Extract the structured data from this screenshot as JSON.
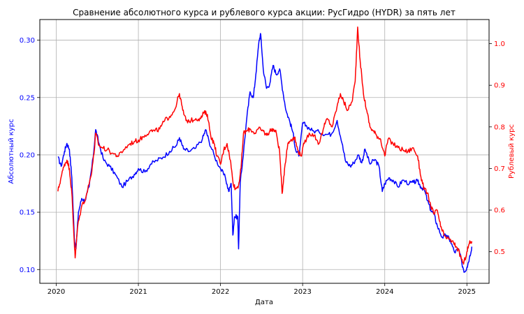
{
  "chart_data": {
    "type": "line",
    "title": "Сравнение абсолютного курса и рублевого курса акции: РусГидро (HYDR) за пять лет",
    "xlabel": "Дата",
    "ylabel_left": "Абсолютный курс",
    "ylabel_right": "Рублевый курс",
    "x_range": [
      2019.8,
      2025.27
    ],
    "x_ticks": [
      "2020",
      "2021",
      "2022",
      "2023",
      "2024",
      "2025"
    ],
    "y_left_range": [
      0.088,
      0.318
    ],
    "y_left_ticks": [
      "0.10",
      "0.15",
      "0.20",
      "0.25",
      "0.30"
    ],
    "y_right_range": [
      0.424,
      1.058
    ],
    "y_right_ticks": [
      "0.5",
      "0.6",
      "0.7",
      "0.8",
      "0.9",
      "1.0"
    ],
    "grid": true,
    "colors": {
      "left": "#0000ff",
      "right": "#ff0000"
    },
    "series": [
      {
        "axis": "left",
        "color": "#0000ff",
        "points": [
          [
            2020.02,
            0.198
          ],
          [
            2020.06,
            0.19
          ],
          [
            2020.1,
            0.203
          ],
          [
            2020.13,
            0.21
          ],
          [
            2020.16,
            0.205
          ],
          [
            2020.19,
            0.18
          ],
          [
            2020.22,
            0.128
          ],
          [
            2020.24,
            0.118
          ],
          [
            2020.27,
            0.15
          ],
          [
            2020.31,
            0.162
          ],
          [
            2020.35,
            0.16
          ],
          [
            2020.4,
            0.172
          ],
          [
            2020.45,
            0.198
          ],
          [
            2020.48,
            0.222
          ],
          [
            2020.52,
            0.21
          ],
          [
            2020.58,
            0.195
          ],
          [
            2020.65,
            0.19
          ],
          [
            2020.72,
            0.183
          ],
          [
            2020.8,
            0.172
          ],
          [
            2020.88,
            0.178
          ],
          [
            2020.95,
            0.183
          ],
          [
            2021.0,
            0.188
          ],
          [
            2021.08,
            0.185
          ],
          [
            2021.15,
            0.192
          ],
          [
            2021.22,
            0.195
          ],
          [
            2021.3,
            0.198
          ],
          [
            2021.38,
            0.203
          ],
          [
            2021.46,
            0.208
          ],
          [
            2021.5,
            0.215
          ],
          [
            2021.55,
            0.205
          ],
          [
            2021.62,
            0.203
          ],
          [
            2021.7,
            0.206
          ],
          [
            2021.78,
            0.214
          ],
          [
            2021.82,
            0.222
          ],
          [
            2021.86,
            0.212
          ],
          [
            2021.93,
            0.198
          ],
          [
            2022.0,
            0.188
          ],
          [
            2022.06,
            0.18
          ],
          [
            2022.1,
            0.168
          ],
          [
            2022.13,
            0.175
          ],
          [
            2022.15,
            0.13
          ],
          [
            2022.17,
            0.146
          ],
          [
            2022.21,
            0.146
          ],
          [
            2022.22,
            0.118
          ],
          [
            2022.24,
            0.175
          ],
          [
            2022.27,
            0.195
          ],
          [
            2022.32,
            0.232
          ],
          [
            2022.36,
            0.255
          ],
          [
            2022.4,
            0.25
          ],
          [
            2022.43,
            0.27
          ],
          [
            2022.47,
            0.3
          ],
          [
            2022.49,
            0.305
          ],
          [
            2022.52,
            0.275
          ],
          [
            2022.56,
            0.258
          ],
          [
            2022.6,
            0.262
          ],
          [
            2022.64,
            0.278
          ],
          [
            2022.68,
            0.27
          ],
          [
            2022.72,
            0.275
          ],
          [
            2022.76,
            0.255
          ],
          [
            2022.8,
            0.238
          ],
          [
            2022.84,
            0.23
          ],
          [
            2022.88,
            0.22
          ],
          [
            2022.92,
            0.203
          ],
          [
            2022.96,
            0.2
          ],
          [
            2023.0,
            0.228
          ],
          [
            2023.05,
            0.225
          ],
          [
            2023.12,
            0.221
          ],
          [
            2023.2,
            0.22
          ],
          [
            2023.28,
            0.218
          ],
          [
            2023.35,
            0.218
          ],
          [
            2023.42,
            0.23
          ],
          [
            2023.48,
            0.21
          ],
          [
            2023.52,
            0.195
          ],
          [
            2023.58,
            0.19
          ],
          [
            2023.62,
            0.193
          ],
          [
            2023.68,
            0.2
          ],
          [
            2023.72,
            0.193
          ],
          [
            2023.76,
            0.205
          ],
          [
            2023.82,
            0.192
          ],
          [
            2023.88,
            0.196
          ],
          [
            2023.93,
            0.19
          ],
          [
            2023.97,
            0.168
          ],
          [
            2024.0,
            0.175
          ],
          [
            2024.05,
            0.18
          ],
          [
            2024.1,
            0.178
          ],
          [
            2024.16,
            0.172
          ],
          [
            2024.22,
            0.178
          ],
          [
            2024.3,
            0.175
          ],
          [
            2024.35,
            0.176
          ],
          [
            2024.4,
            0.177
          ],
          [
            2024.44,
            0.172
          ],
          [
            2024.48,
            0.17
          ],
          [
            2024.52,
            0.16
          ],
          [
            2024.56,
            0.152
          ],
          [
            2024.6,
            0.148
          ],
          [
            2024.64,
            0.138
          ],
          [
            2024.7,
            0.128
          ],
          [
            2024.75,
            0.13
          ],
          [
            2024.8,
            0.125
          ],
          [
            2024.85,
            0.115
          ],
          [
            2024.9,
            0.118
          ],
          [
            2024.94,
            0.105
          ],
          [
            2024.97,
            0.098
          ],
          [
            2025.0,
            0.102
          ],
          [
            2025.03,
            0.11
          ],
          [
            2025.06,
            0.12
          ]
        ]
      },
      {
        "axis": "right",
        "color": "#ff0000",
        "points": [
          [
            2020.02,
            0.645
          ],
          [
            2020.06,
            0.68
          ],
          [
            2020.1,
            0.71
          ],
          [
            2020.13,
            0.72
          ],
          [
            2020.16,
            0.7
          ],
          [
            2020.19,
            0.64
          ],
          [
            2020.21,
            0.56
          ],
          [
            2020.23,
            0.485
          ],
          [
            2020.26,
            0.56
          ],
          [
            2020.31,
            0.61
          ],
          [
            2020.36,
            0.63
          ],
          [
            2020.42,
            0.68
          ],
          [
            2020.46,
            0.735
          ],
          [
            2020.48,
            0.785
          ],
          [
            2020.52,
            0.755
          ],
          [
            2020.56,
            0.75
          ],
          [
            2020.62,
            0.745
          ],
          [
            2020.7,
            0.735
          ],
          [
            2020.76,
            0.73
          ],
          [
            2020.82,
            0.745
          ],
          [
            2020.9,
            0.76
          ],
          [
            2020.96,
            0.765
          ],
          [
            2021.02,
            0.77
          ],
          [
            2021.08,
            0.78
          ],
          [
            2021.14,
            0.79
          ],
          [
            2021.2,
            0.79
          ],
          [
            2021.26,
            0.795
          ],
          [
            2021.32,
            0.815
          ],
          [
            2021.38,
            0.825
          ],
          [
            2021.44,
            0.84
          ],
          [
            2021.5,
            0.88
          ],
          [
            2021.54,
            0.84
          ],
          [
            2021.58,
            0.815
          ],
          [
            2021.64,
            0.815
          ],
          [
            2021.7,
            0.82
          ],
          [
            2021.76,
            0.82
          ],
          [
            2021.8,
            0.835
          ],
          [
            2021.84,
            0.83
          ],
          [
            2021.88,
            0.78
          ],
          [
            2021.92,
            0.76
          ],
          [
            2021.96,
            0.73
          ],
          [
            2022.0,
            0.71
          ],
          [
            2022.04,
            0.745
          ],
          [
            2022.08,
            0.76
          ],
          [
            2022.12,
            0.72
          ],
          [
            2022.15,
            0.67
          ],
          [
            2022.18,
            0.65
          ],
          [
            2022.22,
            0.66
          ],
          [
            2022.25,
            0.7
          ],
          [
            2022.28,
            0.785
          ],
          [
            2022.32,
            0.79
          ],
          [
            2022.36,
            0.795
          ],
          [
            2022.42,
            0.785
          ],
          [
            2022.46,
            0.795
          ],
          [
            2022.52,
            0.79
          ],
          [
            2022.56,
            0.78
          ],
          [
            2022.6,
            0.79
          ],
          [
            2022.64,
            0.795
          ],
          [
            2022.68,
            0.785
          ],
          [
            2022.72,
            0.74
          ],
          [
            2022.75,
            0.64
          ],
          [
            2022.78,
            0.7
          ],
          [
            2022.82,
            0.76
          ],
          [
            2022.86,
            0.77
          ],
          [
            2022.9,
            0.775
          ],
          [
            2022.94,
            0.745
          ],
          [
            2022.98,
            0.73
          ],
          [
            2023.02,
            0.76
          ],
          [
            2023.08,
            0.785
          ],
          [
            2023.14,
            0.78
          ],
          [
            2023.2,
            0.76
          ],
          [
            2023.26,
            0.8
          ],
          [
            2023.3,
            0.82
          ],
          [
            2023.36,
            0.8
          ],
          [
            2023.42,
            0.85
          ],
          [
            2023.46,
            0.88
          ],
          [
            2023.5,
            0.86
          ],
          [
            2023.55,
            0.84
          ],
          [
            2023.6,
            0.86
          ],
          [
            2023.64,
            0.91
          ],
          [
            2023.67,
            1.04
          ],
          [
            2023.7,
            0.96
          ],
          [
            2023.74,
            0.88
          ],
          [
            2023.78,
            0.84
          ],
          [
            2023.82,
            0.8
          ],
          [
            2023.86,
            0.79
          ],
          [
            2023.9,
            0.78
          ],
          [
            2023.95,
            0.77
          ],
          [
            2024.0,
            0.73
          ],
          [
            2024.04,
            0.77
          ],
          [
            2024.1,
            0.76
          ],
          [
            2024.16,
            0.75
          ],
          [
            2024.22,
            0.745
          ],
          [
            2024.28,
            0.74
          ],
          [
            2024.34,
            0.75
          ],
          [
            2024.4,
            0.73
          ],
          [
            2024.44,
            0.68
          ],
          [
            2024.48,
            0.65
          ],
          [
            2024.52,
            0.64
          ],
          [
            2024.56,
            0.61
          ],
          [
            2024.6,
            0.59
          ],
          [
            2024.64,
            0.6
          ],
          [
            2024.68,
            0.56
          ],
          [
            2024.72,
            0.54
          ],
          [
            2024.78,
            0.53
          ],
          [
            2024.84,
            0.52
          ],
          [
            2024.88,
            0.51
          ],
          [
            2024.92,
            0.49
          ],
          [
            2024.96,
            0.47
          ],
          [
            2025.0,
            0.5
          ],
          [
            2025.03,
            0.52
          ],
          [
            2025.06,
            0.525
          ]
        ]
      }
    ]
  }
}
